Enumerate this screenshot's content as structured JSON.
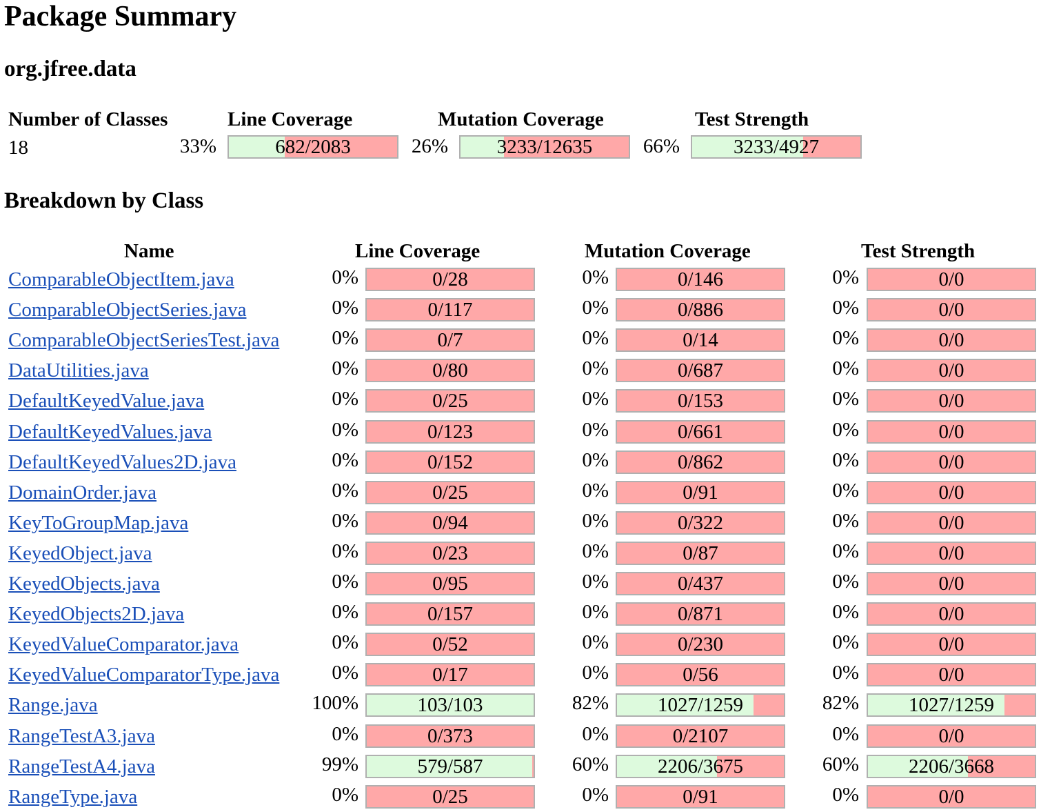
{
  "title": "Package Summary",
  "package_name": "org.jfree.data",
  "summary": {
    "headers": {
      "classes": "Number of Classes",
      "line": "Line Coverage",
      "mutation": "Mutation Coverage",
      "strength": "Test Strength"
    },
    "num_classes": "18",
    "line": {
      "pct": "33%",
      "label": "682/2083",
      "fraction": 0.33
    },
    "mutation": {
      "pct": "26%",
      "label": "3233/12635",
      "fraction": 0.26
    },
    "strength": {
      "pct": "66%",
      "label": "3233/4927",
      "fraction": 0.66
    }
  },
  "breakdown_title": "Breakdown by Class",
  "table_headers": {
    "name": "Name",
    "line": "Line Coverage",
    "mutation": "Mutation Coverage",
    "strength": "Test Strength"
  },
  "colors": {
    "covered": "#ddfadd",
    "uncovered": "#ffa8a8",
    "link": "#1a4fb8"
  },
  "rows": [
    {
      "name": "ComparableObjectItem.java",
      "line_pct": "0%",
      "line": "0/28",
      "line_f": 0,
      "mut_pct": "0%",
      "mut": "0/146",
      "mut_f": 0,
      "str_pct": "0%",
      "str": "0/0",
      "str_f": 0
    },
    {
      "name": "ComparableObjectSeries.java",
      "line_pct": "0%",
      "line": "0/117",
      "line_f": 0,
      "mut_pct": "0%",
      "mut": "0/886",
      "mut_f": 0,
      "str_pct": "0%",
      "str": "0/0",
      "str_f": 0
    },
    {
      "name": "ComparableObjectSeriesTest.java",
      "line_pct": "0%",
      "line": "0/7",
      "line_f": 0,
      "mut_pct": "0%",
      "mut": "0/14",
      "mut_f": 0,
      "str_pct": "0%",
      "str": "0/0",
      "str_f": 0
    },
    {
      "name": "DataUtilities.java",
      "line_pct": "0%",
      "line": "0/80",
      "line_f": 0,
      "mut_pct": "0%",
      "mut": "0/687",
      "mut_f": 0,
      "str_pct": "0%",
      "str": "0/0",
      "str_f": 0
    },
    {
      "name": "DefaultKeyedValue.java",
      "line_pct": "0%",
      "line": "0/25",
      "line_f": 0,
      "mut_pct": "0%",
      "mut": "0/153",
      "mut_f": 0,
      "str_pct": "0%",
      "str": "0/0",
      "str_f": 0
    },
    {
      "name": "DefaultKeyedValues.java",
      "line_pct": "0%",
      "line": "0/123",
      "line_f": 0,
      "mut_pct": "0%",
      "mut": "0/661",
      "mut_f": 0,
      "str_pct": "0%",
      "str": "0/0",
      "str_f": 0
    },
    {
      "name": "DefaultKeyedValues2D.java",
      "line_pct": "0%",
      "line": "0/152",
      "line_f": 0,
      "mut_pct": "0%",
      "mut": "0/862",
      "mut_f": 0,
      "str_pct": "0%",
      "str": "0/0",
      "str_f": 0
    },
    {
      "name": "DomainOrder.java",
      "line_pct": "0%",
      "line": "0/25",
      "line_f": 0,
      "mut_pct": "0%",
      "mut": "0/91",
      "mut_f": 0,
      "str_pct": "0%",
      "str": "0/0",
      "str_f": 0
    },
    {
      "name": "KeyToGroupMap.java",
      "line_pct": "0%",
      "line": "0/94",
      "line_f": 0,
      "mut_pct": "0%",
      "mut": "0/322",
      "mut_f": 0,
      "str_pct": "0%",
      "str": "0/0",
      "str_f": 0
    },
    {
      "name": "KeyedObject.java",
      "line_pct": "0%",
      "line": "0/23",
      "line_f": 0,
      "mut_pct": "0%",
      "mut": "0/87",
      "mut_f": 0,
      "str_pct": "0%",
      "str": "0/0",
      "str_f": 0
    },
    {
      "name": "KeyedObjects.java",
      "line_pct": "0%",
      "line": "0/95",
      "line_f": 0,
      "mut_pct": "0%",
      "mut": "0/437",
      "mut_f": 0,
      "str_pct": "0%",
      "str": "0/0",
      "str_f": 0
    },
    {
      "name": "KeyedObjects2D.java",
      "line_pct": "0%",
      "line": "0/157",
      "line_f": 0,
      "mut_pct": "0%",
      "mut": "0/871",
      "mut_f": 0,
      "str_pct": "0%",
      "str": "0/0",
      "str_f": 0
    },
    {
      "name": "KeyedValueComparator.java",
      "line_pct": "0%",
      "line": "0/52",
      "line_f": 0,
      "mut_pct": "0%",
      "mut": "0/230",
      "mut_f": 0,
      "str_pct": "0%",
      "str": "0/0",
      "str_f": 0
    },
    {
      "name": "KeyedValueComparatorType.java",
      "line_pct": "0%",
      "line": "0/17",
      "line_f": 0,
      "mut_pct": "0%",
      "mut": "0/56",
      "mut_f": 0,
      "str_pct": "0%",
      "str": "0/0",
      "str_f": 0
    },
    {
      "name": "Range.java",
      "line_pct": "100%",
      "line": "103/103",
      "line_f": 1.0,
      "mut_pct": "82%",
      "mut": "1027/1259",
      "mut_f": 0.82,
      "str_pct": "82%",
      "str": "1027/1259",
      "str_f": 0.82
    },
    {
      "name": "RangeTestA3.java",
      "line_pct": "0%",
      "line": "0/373",
      "line_f": 0,
      "mut_pct": "0%",
      "mut": "0/2107",
      "mut_f": 0,
      "str_pct": "0%",
      "str": "0/0",
      "str_f": 0
    },
    {
      "name": "RangeTestA4.java",
      "line_pct": "99%",
      "line": "579/587",
      "line_f": 0.99,
      "mut_pct": "60%",
      "mut": "2206/3675",
      "mut_f": 0.6,
      "str_pct": "60%",
      "str": "2206/3668",
      "str_f": 0.6
    },
    {
      "name": "RangeType.java",
      "line_pct": "0%",
      "line": "0/25",
      "line_f": 0,
      "mut_pct": "0%",
      "mut": "0/91",
      "mut_f": 0,
      "str_pct": "0%",
      "str": "0/0",
      "str_f": 0
    }
  ]
}
